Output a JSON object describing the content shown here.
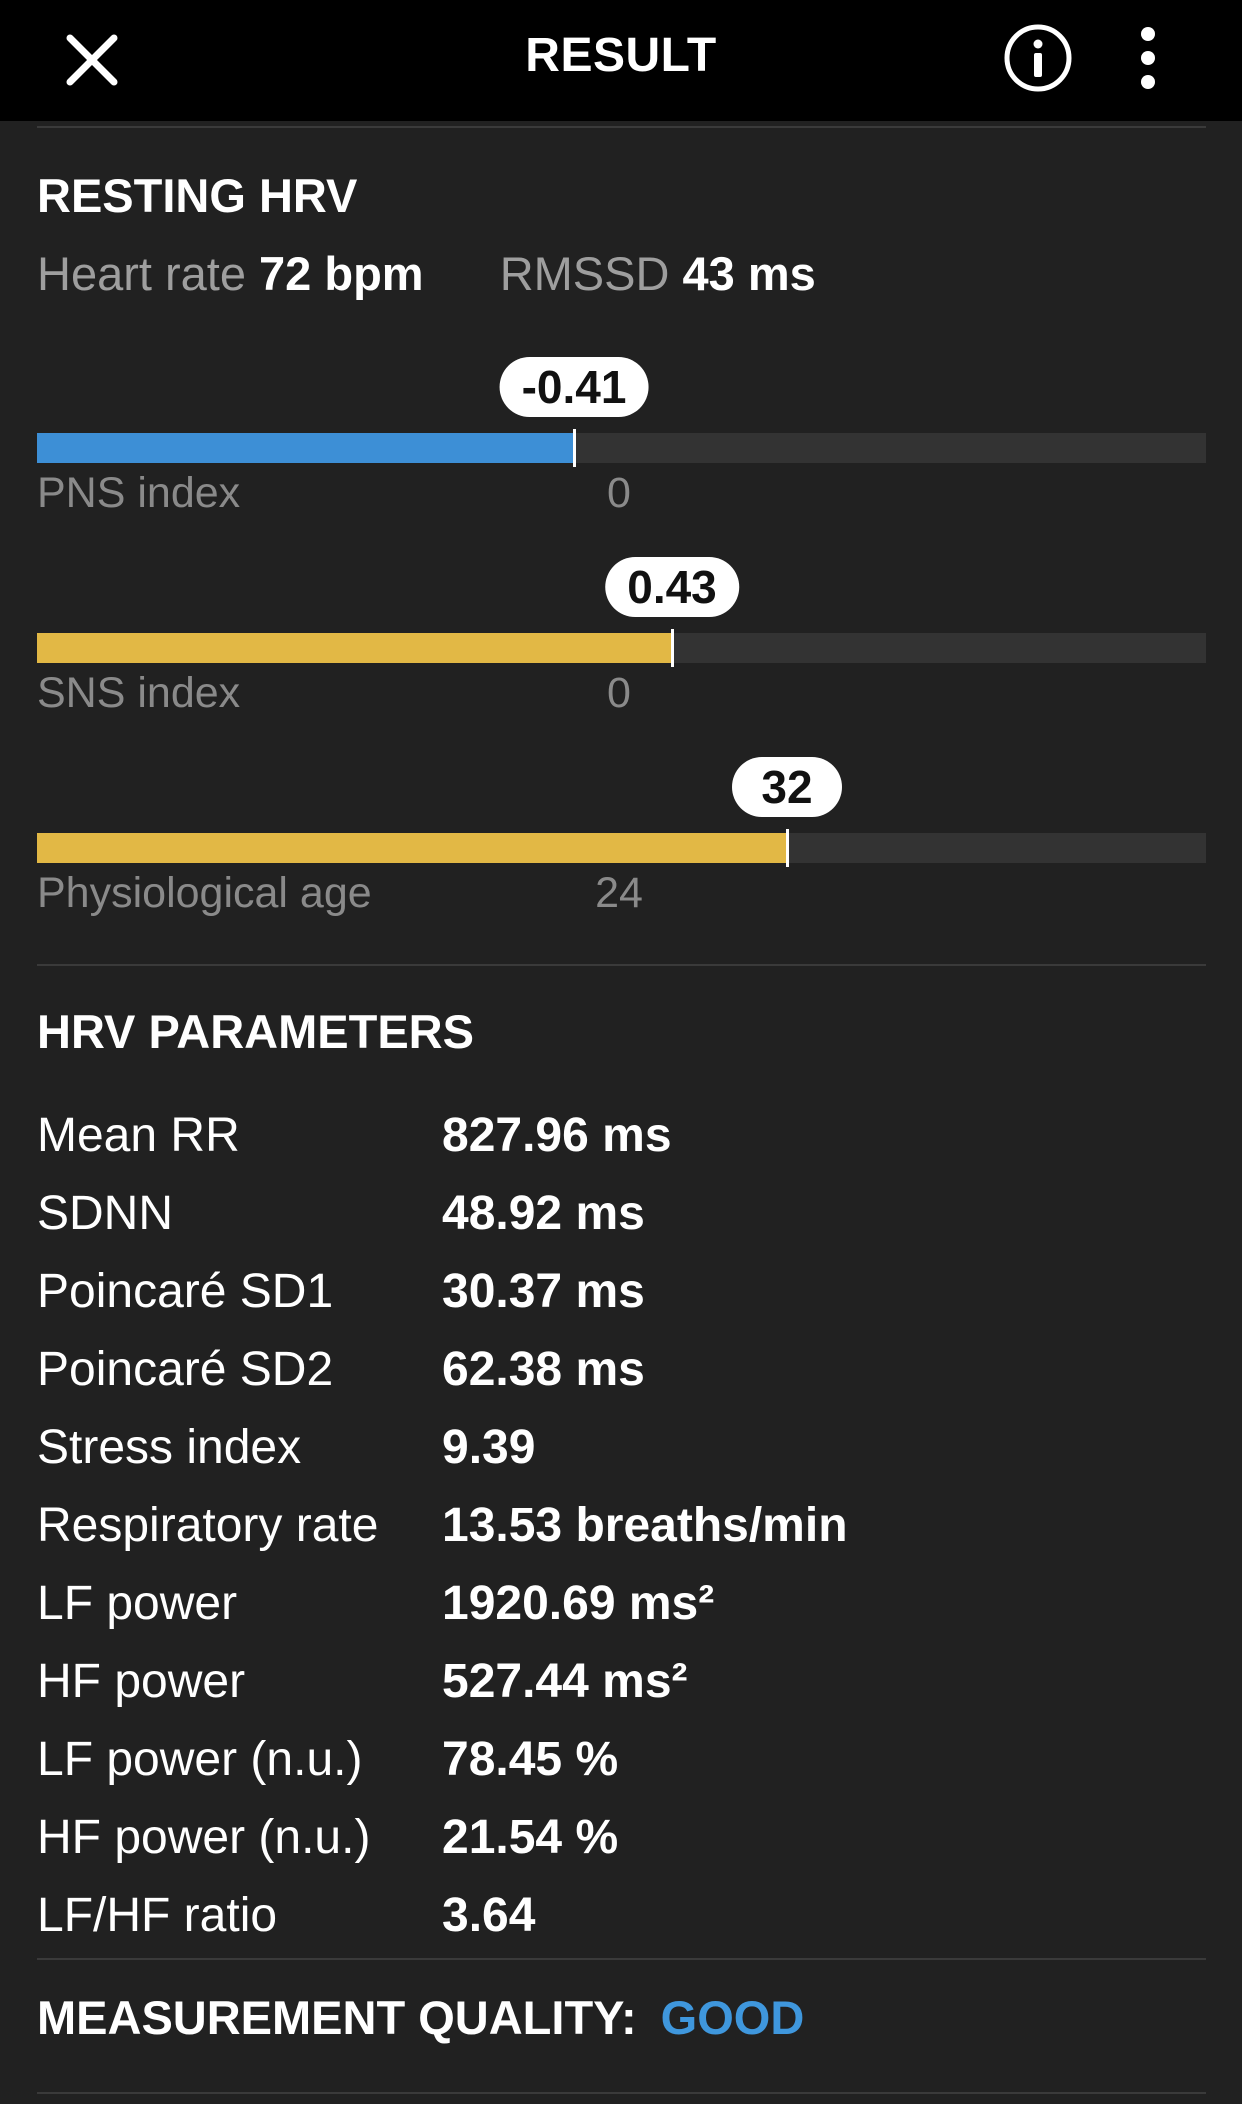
{
  "appbar": {
    "title": "RESULT",
    "icons": [
      "close-icon",
      "info-icon",
      "more-vert-icon"
    ]
  },
  "resting": {
    "title": "RESTING HRV",
    "heart_rate_label": "Heart rate",
    "heart_rate_value": "72 bpm",
    "rmssd_label": "RMSSD",
    "rmssd_value": "43 ms"
  },
  "gauges": [
    {
      "label": "PNS index",
      "value": "-0.41",
      "reference": "0",
      "level_fraction": 0.459,
      "color": "#3d8fd6"
    },
    {
      "label": "SNS index",
      "value": "0.43",
      "reference": "0",
      "level_fraction": 0.543,
      "color": "#e2b845"
    },
    {
      "label": "Physiological age",
      "value": "32",
      "reference": "24",
      "level_fraction": 0.642,
      "color": "#e2b845"
    }
  ],
  "hrv_parameters": {
    "title": "HRV PARAMETERS",
    "rows": [
      {
        "name": "Mean RR",
        "value": "827.96 ms"
      },
      {
        "name": "SDNN",
        "value": "48.92 ms"
      },
      {
        "name": "Poincaré SD1",
        "value": "30.37 ms"
      },
      {
        "name": "Poincaré SD2",
        "value": "62.38 ms"
      },
      {
        "name": "Stress index",
        "value": "9.39"
      },
      {
        "name": "Respiratory rate",
        "value": "13.53 breaths/min"
      },
      {
        "name": "LF power",
        "value": "1920.69 ms²"
      },
      {
        "name": "HF power",
        "value": "527.44 ms²"
      },
      {
        "name": "LF power (n.u.)",
        "value": "78.45 %"
      },
      {
        "name": "HF power (n.u.)",
        "value": "21.54 %"
      },
      {
        "name": "LF/HF ratio",
        "value": "3.64"
      }
    ]
  },
  "quality": {
    "label": "MEASUREMENT QUALITY:",
    "value": "GOOD",
    "value_color": "#3f97dd"
  }
}
